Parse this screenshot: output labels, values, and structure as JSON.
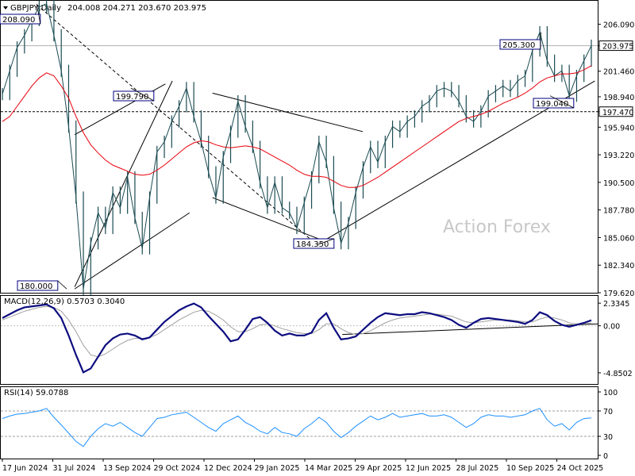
{
  "header": {
    "symbol": "GBPJPY,Daily",
    "ohlc": "204.008 204.271 203.670 203.975",
    "arrow_icon": "triangle-down-icon"
  },
  "watermark": "Action Forex",
  "colors": {
    "price": "#1a4b52",
    "ma": "#e8000b",
    "macd": "#0d0d80",
    "signal": "#a0a0a0",
    "rsi": "#1e90ff",
    "box_border": "#000080"
  },
  "chart_data": [
    {
      "type": "line",
      "panel": "price",
      "ylim": [
        179.62,
        208.4
      ],
      "y_ticks": [
        "206.090",
        "203.975",
        "201.460",
        "198.940",
        "197.470",
        "195.940",
        "193.220",
        "190.500",
        "187.780",
        "185.060",
        "182.340",
        "179.620"
      ],
      "current_price": "203.975",
      "horizontal_level": "197.470",
      "x_ticks": [
        "17 Jun 2024",
        "31 Jul 2024",
        "13 Sep 2024",
        "29 Oct 2024",
        "12 Dec 2024",
        "29 Jan 2025",
        "14 Mar 2025",
        "29 Apr 2025",
        "12 Jun 2025",
        "28 Jul 2025",
        "10 Sep 2025",
        "24 Oct 2025"
      ],
      "annotations": [
        {
          "text": "208.090",
          "date": "2024-07-10",
          "value": 208.09
        },
        {
          "text": "199.790",
          "date": "2024-09-30",
          "value": 199.79
        },
        {
          "text": "180.000",
          "date": "2024-08-05",
          "value": 180.0
        },
        {
          "text": "184.350",
          "date": "2025-03-11",
          "value": 184.35
        },
        {
          "text": "205.300",
          "date": "2025-09-22",
          "value": 205.3
        },
        {
          "text": "199.040",
          "date": "2025-09-30",
          "value": 199.04
        }
      ],
      "series": [
        {
          "values": [
            199.2,
            201.5,
            203.8,
            205.0,
            206.5,
            207.8,
            208.1,
            205.0,
            201.5,
            196.0,
            189.0,
            180.0,
            184.5,
            187.5,
            186.0,
            189.5,
            188.0,
            191.0,
            187.0,
            184.0,
            189.0,
            193.5,
            194.5,
            196.5,
            198.0,
            199.8,
            197.0,
            194.5,
            191.5,
            189.0,
            193.0,
            195.5,
            198.5,
            196.0,
            194.0,
            190.5,
            188.0,
            190.5,
            188.0,
            187.5,
            186.0,
            188.5,
            191.0,
            194.5,
            192.5,
            188.0,
            184.5,
            186.5,
            189.5,
            192.0,
            194.0,
            192.5,
            194.5,
            196.0,
            195.5,
            196.5,
            197.0,
            198.0,
            198.5,
            199.5,
            199.8,
            199.5,
            198.5,
            197.0,
            196.5,
            197.5,
            199.0,
            199.5,
            200.0,
            199.5,
            200.5,
            201.0,
            203.5,
            205.3,
            202.5,
            201.0,
            201.5,
            199.04,
            201.0,
            202.5,
            203.975
          ]
        },
        {
          "name": "",
          "values": [
            196.5,
            197.0,
            198.0,
            199.0,
            200.0,
            200.8,
            201.3,
            201.0,
            200.0,
            198.8,
            197.0,
            195.4,
            194.2,
            193.4,
            192.7,
            192.2,
            191.9,
            191.6,
            191.3,
            191.2,
            191.3,
            191.7,
            192.2,
            192.8,
            193.4,
            194.0,
            194.4,
            194.6,
            194.5,
            194.2,
            194.0,
            193.9,
            194.0,
            194.1,
            194.0,
            193.8,
            193.4,
            193.0,
            192.6,
            192.2,
            191.7,
            191.3,
            191.1,
            191.1,
            191.0,
            190.6,
            190.2,
            190.0,
            190.0,
            190.2,
            190.6,
            191.0,
            191.5,
            192.0,
            192.5,
            193.0,
            193.5,
            194.0,
            194.5,
            195.0,
            195.5,
            196.0,
            196.5,
            196.8,
            197.0,
            197.2,
            197.5,
            197.9,
            198.3,
            198.6,
            198.9,
            199.3,
            199.8,
            200.4,
            200.8,
            201.0,
            201.2,
            201.2,
            201.3,
            201.6,
            202.0
          ]
        }
      ]
    },
    {
      "type": "line",
      "panel": "macd",
      "label": "MACD(12,26,9) 0.5703 0.3040",
      "y_ticks": [
        "2.3345",
        "0.00",
        "-4.8502"
      ],
      "ylim": [
        -6.0,
        3.0
      ],
      "series": [
        {
          "values": [
            0.8,
            1.2,
            1.6,
            1.9,
            2.0,
            2.1,
            2.2,
            1.8,
            0.8,
            -1.0,
            -3.0,
            -4.8,
            -4.4,
            -3.2,
            -2.0,
            -1.3,
            -0.9,
            -0.8,
            -1.0,
            -1.4,
            -1.2,
            -0.4,
            0.4,
            1.0,
            1.6,
            2.0,
            2.3,
            1.9,
            1.0,
            0.2,
            -0.6,
            -1.6,
            -1.4,
            -0.4,
            0.7,
            0.9,
            0.3,
            -0.5,
            -1.0,
            -0.8,
            -1.0,
            -1.0,
            -0.7,
            0.6,
            1.3,
            -0.2,
            -1.4,
            -1.3,
            -1.1,
            -0.4,
            0.3,
            0.9,
            1.3,
            1.2,
            1.1,
            1.2,
            1.2,
            1.4,
            1.3,
            1.1,
            0.9,
            0.6,
            0.1,
            -0.2,
            0.3,
            0.7,
            0.8,
            0.7,
            0.6,
            0.5,
            0.4,
            0.2,
            0.6,
            1.4,
            1.1,
            0.5,
            0.1,
            -0.1,
            0.1,
            0.3,
            0.5703
          ]
        },
        {
          "values": [
            0.6,
            0.9,
            1.2,
            1.5,
            1.7,
            1.9,
            2.0,
            1.9,
            1.5,
            0.6,
            -0.6,
            -2.0,
            -3.0,
            -3.2,
            -2.9,
            -2.4,
            -1.9,
            -1.5,
            -1.3,
            -1.3,
            -1.2,
            -0.9,
            -0.4,
            0.1,
            0.6,
            1.0,
            1.4,
            1.6,
            1.5,
            1.1,
            0.6,
            -0.1,
            -0.6,
            -0.6,
            -0.3,
            0.1,
            0.2,
            0.0,
            -0.3,
            -0.5,
            -0.7,
            -0.8,
            -0.8,
            -0.4,
            0.2,
            0.2,
            -0.3,
            -0.7,
            -0.9,
            -0.8,
            -0.5,
            -0.1,
            0.3,
            0.6,
            0.8,
            0.9,
            1.0,
            1.1,
            1.2,
            1.2,
            1.1,
            1.0,
            0.7,
            0.4,
            0.3,
            0.4,
            0.5,
            0.6,
            0.6,
            0.6,
            0.5,
            0.4,
            0.4,
            0.7,
            0.9,
            0.8,
            0.6,
            0.3,
            0.2,
            0.2,
            0.304
          ]
        }
      ]
    },
    {
      "type": "line",
      "panel": "rsi",
      "label": "RSI(14) 59.0788",
      "y_ticks": [
        "100",
        "70",
        "30",
        "0"
      ],
      "ylim": [
        0,
        100
      ],
      "series": [
        {
          "values": [
            58,
            62,
            65,
            66,
            68,
            70,
            74,
            60,
            48,
            35,
            22,
            14,
            30,
            42,
            50,
            46,
            52,
            44,
            36,
            30,
            44,
            58,
            60,
            64,
            66,
            68,
            60,
            52,
            44,
            38,
            50,
            56,
            62,
            52,
            46,
            38,
            34,
            44,
            36,
            34,
            30,
            42,
            50,
            60,
            52,
            38,
            28,
            36,
            46,
            54,
            62,
            56,
            60,
            66,
            60,
            62,
            64,
            66,
            62,
            62,
            64,
            60,
            52,
            44,
            50,
            60,
            64,
            62,
            62,
            60,
            62,
            64,
            70,
            74,
            56,
            46,
            50,
            40,
            52,
            58,
            59.0788
          ]
        }
      ]
    }
  ]
}
